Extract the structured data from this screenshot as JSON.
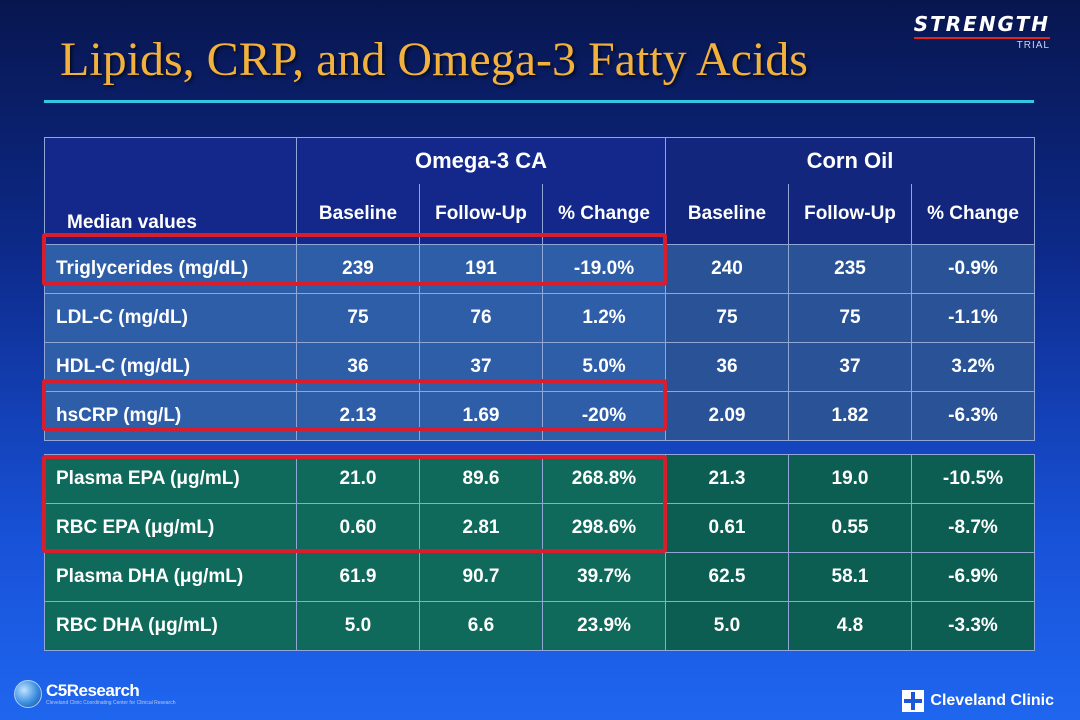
{
  "title": "Lipids, CRP, and Omega-3 Fatty Acids",
  "brand": {
    "name": "STRENGTH",
    "sub": "TRIAL"
  },
  "table": {
    "group_headers": [
      "Omega-3 CA",
      "Corn Oil"
    ],
    "row_header": "Median values",
    "columns": [
      "Baseline",
      "Follow-Up",
      "% Change",
      "Baseline",
      "Follow-Up",
      "% Change"
    ],
    "lipid_rows": [
      {
        "label": "Triglycerides (mg/dL)",
        "values": [
          "239",
          "191",
          "-19.0%",
          "240",
          "235",
          "-0.9%"
        ]
      },
      {
        "label": "LDL-C (mg/dL)",
        "values": [
          "75",
          "76",
          "1.2%",
          "75",
          "75",
          "-1.1%"
        ]
      },
      {
        "label": "HDL-C (mg/dL)",
        "values": [
          "36",
          "37",
          "5.0%",
          "36",
          "37",
          "3.2%"
        ]
      },
      {
        "label": "hsCRP (mg/L)",
        "values": [
          "2.13",
          "1.69",
          "-20%",
          "2.09",
          "1.82",
          "-6.3%"
        ]
      }
    ],
    "fatty_acid_rows": [
      {
        "label": "Plasma EPA (μg/mL)",
        "values": [
          "21.0",
          "89.6",
          "268.8%",
          "21.3",
          "19.0",
          "-10.5%"
        ]
      },
      {
        "label": "RBC EPA (μg/mL)",
        "values": [
          "0.60",
          "2.81",
          "298.6%",
          "0.61",
          "0.55",
          "-8.7%"
        ]
      },
      {
        "label": "Plasma DHA (μg/mL)",
        "values": [
          "61.9",
          "90.7",
          "39.7%",
          "62.5",
          "58.1",
          "-6.9%"
        ]
      },
      {
        "label": "RBC DHA (μg/mL)",
        "values": [
          "5.0",
          "6.6",
          "23.9%",
          "5.0",
          "4.8",
          "-3.3%"
        ]
      }
    ]
  },
  "footer": {
    "left_logo": "C5Research",
    "left_tagline": "Cleveland Clinic Coordinating Center for Clinical Research",
    "right_logo": "Cleveland Clinic"
  }
}
